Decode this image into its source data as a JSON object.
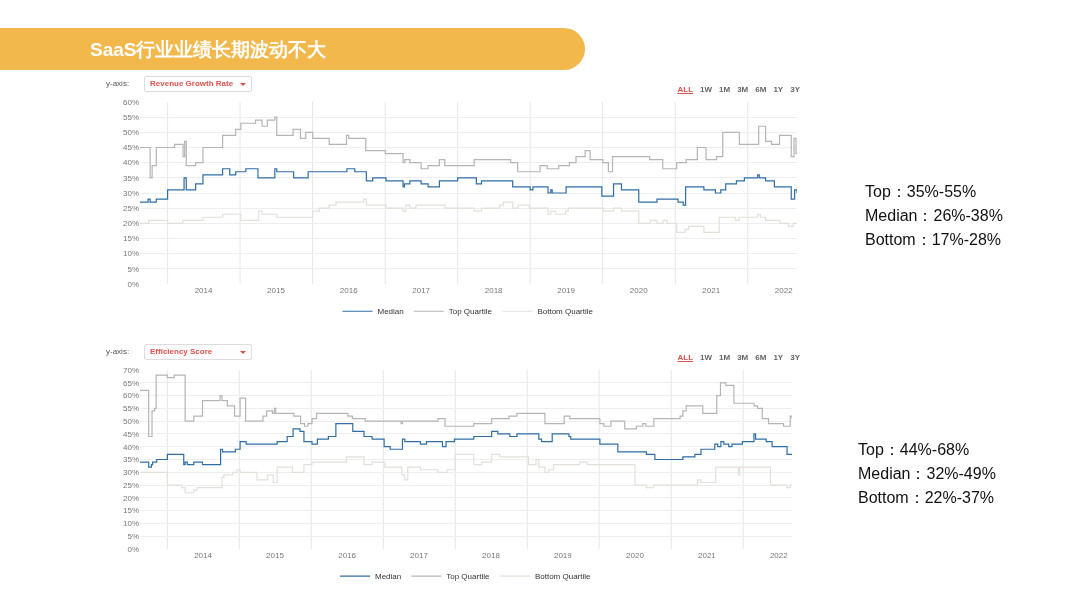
{
  "chart_data": [
    {
      "type": "step",
      "title": "SaaS行业业绩长期波动不大",
      "ylabel": "Revenue Growth Rate",
      "annotations": [
        "y-axis:",
        "ALL",
        "1W",
        "1M",
        "3M",
        "6M",
        "1Y",
        "3Y",
        "Top：35%-55%\nMedian：26%-38%\nBottom：17%-28%"
      ],
      "xlim": [
        "2013-08-15",
        "2022-09-06"
      ],
      "xticks": [
        {
          "value": "2014-01-01",
          "label": null
        },
        {
          "value": "2015-01-01",
          "label": null
        },
        {
          "value": "2016-01-01",
          "label": null
        },
        {
          "value": "2017-01-01",
          "label": null
        },
        {
          "value": "2018-01-01",
          "label": null
        },
        {
          "value": "2019-01-01",
          "label": null
        },
        {
          "value": "2020-01-01",
          "label": null
        },
        {
          "value": "2021-01-01",
          "label": null
        },
        {
          "value": "2022-01-01",
          "label": null
        },
        {
          "value": "2014-07-01",
          "label": "2014"
        },
        {
          "value": "2015-07-01",
          "label": "2015"
        },
        {
          "value": "2016-07-01",
          "label": "2016"
        },
        {
          "value": "2017-07-01",
          "label": "2017"
        },
        {
          "value": "2018-07-01",
          "label": "2018"
        },
        {
          "value": "2019-07-01",
          "label": "2019"
        },
        {
          "value": "2020-07-01",
          "label": "2020"
        },
        {
          "value": "2021-07-01",
          "label": "2021"
        },
        {
          "value": "2022-07-01",
          "label": "2022"
        }
      ],
      "ylim": [
        0,
        60
      ],
      "yticks": [
        {
          "value": 0,
          "label": "0%"
        },
        {
          "value": 5,
          "label": "5%"
        },
        {
          "value": 10,
          "label": "10%"
        },
        {
          "value": 15,
          "label": "15%"
        },
        {
          "value": 20,
          "label": "20%"
        },
        {
          "value": 25,
          "label": "25%"
        },
        {
          "value": 30,
          "label": "30%"
        },
        {
          "value": 35,
          "label": "35%"
        },
        {
          "value": 40,
          "label": "40%"
        },
        {
          "value": 45,
          "label": "45%"
        },
        {
          "value": 50,
          "label": "50%"
        },
        {
          "value": 55,
          "label": "55%"
        },
        {
          "value": 60,
          "label": "60%"
        }
      ],
      "grid": true,
      "legend": "bottom",
      "series": [
        {
          "name": "Median",
          "color": "#2f6ea5",
          "x": [
            "2013-08-15",
            "2013-09-25",
            "2013-10-05",
            "2013-11-05",
            "2014-01-01",
            "2014-03-25",
            "2014-04-05",
            "2014-05-22",
            "2014-06-28",
            "2014-10-05",
            "2014-11-10",
            "2014-12-10",
            "2015-01-30",
            "2015-04-01",
            "2015-06-25",
            "2015-07-05",
            "2015-09-28",
            "2015-12-10",
            "2016-06-22",
            "2016-08-01",
            "2016-09-28",
            "2016-10-30",
            "2017-01-05",
            "2017-04-01",
            "2017-04-08",
            "2017-05-05",
            "2017-07-01",
            "2017-08-05",
            "2017-10-01",
            "2018-01-01",
            "2018-04-05",
            "2018-05-01",
            "2018-10-05",
            "2019-01-01",
            "2019-01-15",
            "2019-04-01",
            "2019-04-15",
            "2019-04-22",
            "2019-07-01",
            "2019-12-28",
            "2020-02-25",
            "2020-04-05",
            "2020-07-01",
            "2020-10-01",
            "2021-01-15",
            "2021-02-10",
            "2021-02-22",
            "2021-05-25",
            "2021-07-22",
            "2021-08-18",
            "2021-09-12",
            "2021-11-05",
            "2021-12-15",
            "2022-02-20",
            "2022-02-28",
            "2022-04-01",
            "2022-05-15",
            "2022-08-08",
            "2022-08-25",
            "2022-09-06"
          ],
          "values": [
            27,
            28,
            27,
            28,
            31,
            35,
            31,
            33,
            36,
            38,
            36,
            37,
            38,
            35,
            38,
            37,
            35,
            37,
            38,
            37,
            34,
            35,
            34,
            32,
            33,
            34,
            33,
            32,
            34,
            35,
            33,
            34,
            32,
            31,
            32,
            30,
            31,
            30,
            32,
            29,
            33,
            31,
            27,
            28,
            27,
            26,
            32,
            31,
            30,
            31,
            33,
            34,
            35,
            36,
            35,
            34,
            32,
            28,
            31,
            30
          ]
        },
        {
          "name": "Top Quartile",
          "color": "#b5b5b5",
          "x": [
            "2013-08-15",
            "2013-10-05",
            "2013-10-15",
            "2013-11-05",
            "2014-02-05",
            "2014-03-20",
            "2014-03-28",
            "2014-04-05",
            "2014-05-22",
            "2014-06-28",
            "2014-10-05",
            "2014-12-10",
            "2015-01-05",
            "2015-03-20",
            "2015-04-22",
            "2015-05-18",
            "2015-06-25",
            "2015-07-05",
            "2015-09-25",
            "2015-11-01",
            "2015-11-28",
            "2016-01-02",
            "2016-03-25",
            "2016-06-20",
            "2016-07-01",
            "2016-09-25",
            "2017-01-02",
            "2017-04-01",
            "2017-04-10",
            "2017-05-05",
            "2017-07-01",
            "2017-08-05",
            "2017-10-01",
            "2017-10-28",
            "2018-03-25",
            "2018-09-25",
            "2018-10-30",
            "2019-02-20",
            "2019-03-28",
            "2019-05-25",
            "2019-07-18",
            "2019-08-20",
            "2019-10-05",
            "2019-10-30",
            "2020-01-02",
            "2020-01-30",
            "2020-02-20",
            "2020-08-25",
            "2020-10-30",
            "2021-01-08",
            "2021-02-25",
            "2021-04-22",
            "2021-06-05",
            "2021-07-28",
            "2021-08-28",
            "2021-11-20",
            "2022-02-25",
            "2022-04-01",
            "2022-05-01",
            "2022-06-10",
            "2022-08-08",
            "2022-08-22",
            "2022-09-01",
            "2022-09-06"
          ],
          "values": [
            45,
            35,
            39,
            45,
            46,
            42,
            47,
            39,
            40,
            45,
            49,
            51,
            53,
            54,
            52,
            54,
            55,
            49,
            51,
            48,
            50,
            48,
            46,
            49,
            48,
            44,
            43,
            40,
            41,
            40,
            38,
            39,
            41,
            39,
            41,
            40,
            37,
            39,
            38,
            39,
            40,
            42,
            44,
            41,
            40,
            37,
            42,
            41,
            38,
            40,
            41,
            45,
            41,
            42,
            50,
            46,
            52,
            47,
            46,
            49,
            42,
            48,
            43,
            43
          ]
        },
        {
          "name": "Bottom Quartile",
          "color": "#e3e0da",
          "x": [
            "2013-08-15",
            "2013-09-28",
            "2014-01-01",
            "2014-03-18",
            "2014-06-28",
            "2014-10-05",
            "2015-01-05",
            "2015-04-05",
            "2015-04-22",
            "2015-07-05",
            "2016-01-01",
            "2016-02-05",
            "2016-03-25",
            "2016-04-28",
            "2016-09-15",
            "2016-09-28",
            "2017-01-05",
            "2017-04-01",
            "2017-04-15",
            "2017-05-05",
            "2017-06-05",
            "2017-10-30",
            "2018-03-25",
            "2018-05-01",
            "2018-08-01",
            "2018-08-20",
            "2018-10-05",
            "2018-11-01",
            "2018-12-28",
            "2019-04-01",
            "2019-04-15",
            "2019-05-10",
            "2019-06-28",
            "2019-07-12",
            "2020-01-05",
            "2020-02-25",
            "2020-04-05",
            "2020-07-01",
            "2020-08-28",
            "2020-10-01",
            "2020-11-01",
            "2020-11-20",
            "2021-01-08",
            "2021-02-20",
            "2021-03-10",
            "2021-05-25",
            "2021-08-10",
            "2021-11-01",
            "2021-11-18",
            "2022-02-20",
            "2022-03-05",
            "2022-04-01",
            "2022-06-12",
            "2022-07-25",
            "2022-08-18",
            "2022-09-06"
          ],
          "values": [
            20,
            21,
            20,
            21,
            22,
            23,
            21,
            24,
            23,
            22,
            24,
            25,
            26,
            27,
            28,
            26,
            25,
            24,
            26,
            25,
            26,
            25,
            24,
            25,
            26,
            27,
            25,
            26,
            25,
            23,
            24,
            23,
            24,
            25,
            24,
            25,
            24,
            20,
            21,
            20,
            21,
            20,
            17,
            18,
            19,
            17,
            22,
            21,
            22,
            23,
            22,
            21,
            20,
            19,
            20,
            20
          ]
        }
      ]
    },
    {
      "type": "step",
      "ylabel": "Efficiency Score",
      "annotations": [
        "y-axis:",
        "ALL",
        "1W",
        "1M",
        "3M",
        "6M",
        "1Y",
        "3Y",
        "Top：44%-68%\nMedian：32%-49%\nBottom：22%-37%"
      ],
      "xlim": [
        "2013-08-15",
        "2022-09-06"
      ],
      "xticks": [
        {
          "value": "2014-01-01",
          "label": null
        },
        {
          "value": "2015-01-01",
          "label": null
        },
        {
          "value": "2016-01-01",
          "label": null
        },
        {
          "value": "2017-01-01",
          "label": null
        },
        {
          "value": "2018-01-01",
          "label": null
        },
        {
          "value": "2019-01-01",
          "label": null
        },
        {
          "value": "2020-01-01",
          "label": null
        },
        {
          "value": "2021-01-01",
          "label": null
        },
        {
          "value": "2022-01-01",
          "label": null
        },
        {
          "value": "2014-07-01",
          "label": "2014"
        },
        {
          "value": "2015-07-01",
          "label": "2015"
        },
        {
          "value": "2016-07-01",
          "label": "2016"
        },
        {
          "value": "2017-07-01",
          "label": "2017"
        },
        {
          "value": "2018-07-01",
          "label": "2018"
        },
        {
          "value": "2019-07-01",
          "label": "2019"
        },
        {
          "value": "2020-07-01",
          "label": "2020"
        },
        {
          "value": "2021-07-01",
          "label": "2021"
        },
        {
          "value": "2022-07-01",
          "label": "2022"
        }
      ],
      "ylim": [
        0,
        70
      ],
      "yticks": [
        {
          "value": 0,
          "label": "0%"
        },
        {
          "value": 5,
          "label": "5%"
        },
        {
          "value": 10,
          "label": "10%"
        },
        {
          "value": 15,
          "label": "15%"
        },
        {
          "value": 20,
          "label": "20%"
        },
        {
          "value": 25,
          "label": "25%"
        },
        {
          "value": 30,
          "label": "30%"
        },
        {
          "value": 35,
          "label": "35%"
        },
        {
          "value": 40,
          "label": "40%"
        },
        {
          "value": 45,
          "label": "45%"
        },
        {
          "value": 50,
          "label": "50%"
        },
        {
          "value": 55,
          "label": "55%"
        },
        {
          "value": 60,
          "label": "60%"
        },
        {
          "value": 65,
          "label": "65%"
        },
        {
          "value": 70,
          "label": "70%"
        }
      ],
      "grid": true,
      "legend": "bottom",
      "series": [
        {
          "name": "Median",
          "color": "#2f6ea5",
          "x": [
            "2013-08-15",
            "2013-09-28",
            "2013-10-12",
            "2013-10-18",
            "2013-11-08",
            "2014-01-01",
            "2014-03-25",
            "2014-04-01",
            "2014-04-12",
            "2014-05-15",
            "2014-06-28",
            "2014-09-28",
            "2014-10-08",
            "2014-12-12",
            "2015-01-05",
            "2015-02-05",
            "2015-07-12",
            "2015-09-01",
            "2015-10-01",
            "2015-11-05",
            "2015-11-25",
            "2016-01-05",
            "2016-02-01",
            "2016-03-28",
            "2016-05-05",
            "2016-07-30",
            "2016-09-25",
            "2016-11-05",
            "2017-01-05",
            "2017-02-05",
            "2017-04-08",
            "2017-04-20",
            "2017-07-08",
            "2017-08-08",
            "2017-10-28",
            "2017-11-15",
            "2017-12-28",
            "2018-04-05",
            "2018-07-05",
            "2018-08-05",
            "2018-10-05",
            "2018-11-10",
            "2019-03-01",
            "2019-03-15",
            "2019-05-08",
            "2019-08-01",
            "2019-08-10",
            "2020-01-05",
            "2020-04-05",
            "2020-08-28",
            "2020-10-10",
            "2021-03-01",
            "2021-05-01",
            "2021-06-01",
            "2021-08-10",
            "2021-08-25",
            "2021-09-10",
            "2021-09-25",
            "2021-10-20",
            "2021-11-05",
            "2021-12-28",
            "2022-02-25",
            "2022-03-05",
            "2022-04-28",
            "2022-05-28",
            "2022-08-12",
            "2022-09-06"
          ],
          "values": [
            34,
            32,
            33,
            34,
            35,
            37,
            33,
            34,
            33,
            34,
            33,
            39,
            38,
            39,
            42,
            41,
            42,
            44,
            47,
            46,
            42,
            41,
            43,
            44,
            49,
            46,
            44,
            43,
            40,
            39,
            43,
            42,
            41,
            42,
            40,
            42,
            43,
            44,
            46,
            45,
            44,
            45,
            43,
            42,
            45,
            44,
            43,
            41,
            38,
            37,
            35,
            36,
            37,
            39,
            41,
            40,
            42,
            41,
            40,
            41,
            42,
            45,
            43,
            42,
            40,
            37,
            37
          ]
        },
        {
          "name": "Top Quartile",
          "color": "#b5b5b5",
          "x": [
            "2013-08-15",
            "2013-09-28",
            "2013-10-15",
            "2013-10-28",
            "2013-11-05",
            "2014-01-01",
            "2014-02-05",
            "2014-04-01",
            "2014-05-15",
            "2014-06-28",
            "2014-09-25",
            "2014-10-05",
            "2014-11-01",
            "2014-12-08",
            "2015-01-05",
            "2015-02-02",
            "2015-05-01",
            "2015-05-20",
            "2015-06-18",
            "2015-06-28",
            "2015-07-05",
            "2015-10-05",
            "2015-11-08",
            "2015-11-28",
            "2015-12-15",
            "2016-01-05",
            "2016-01-28",
            "2016-07-05",
            "2016-07-28",
            "2016-10-01",
            "2017-04-01",
            "2017-04-08",
            "2017-10-05",
            "2017-11-10",
            "2018-04-05",
            "2018-07-05",
            "2018-10-01",
            "2018-11-10",
            "2019-04-01",
            "2019-07-08",
            "2019-08-05",
            "2020-01-05",
            "2020-01-25",
            "2020-03-01",
            "2020-05-10",
            "2020-07-08",
            "2020-08-10",
            "2020-08-25",
            "2020-10-05",
            "2021-02-15",
            "2021-03-01",
            "2021-03-18",
            "2021-06-10",
            "2021-08-20",
            "2021-09-08",
            "2021-10-05",
            "2021-11-15",
            "2022-02-25",
            "2022-03-15",
            "2022-04-08",
            "2022-05-10",
            "2022-07-25",
            "2022-08-28",
            "2022-09-06"
          ],
          "values": [
            62,
            44,
            54,
            55,
            68,
            67,
            68,
            50,
            52,
            58,
            60,
            58,
            56,
            52,
            59,
            50,
            52,
            54,
            53,
            55,
            53,
            52,
            49,
            48,
            49,
            51,
            53,
            52,
            51,
            50,
            49,
            50,
            51,
            48,
            49,
            51,
            52,
            53,
            49,
            52,
            51,
            49,
            48,
            50,
            47,
            48,
            49,
            48,
            51,
            52,
            54,
            56,
            53,
            60,
            65,
            64,
            57,
            56,
            55,
            51,
            49,
            48,
            52,
            51
          ]
        },
        {
          "name": "Bottom Quartile",
          "color": "#e3e0da",
          "x": [
            "2013-08-15",
            "2014-01-01",
            "2014-03-15",
            "2014-04-01",
            "2014-05-15",
            "2014-06-01",
            "2014-10-05",
            "2014-10-15",
            "2014-11-28",
            "2014-12-20",
            "2015-01-05",
            "2015-04-01",
            "2015-05-25",
            "2015-06-22",
            "2015-07-12",
            "2015-09-28",
            "2015-11-25",
            "2016-01-05",
            "2016-06-28",
            "2016-09-25",
            "2016-11-05",
            "2017-01-08",
            "2017-04-05",
            "2017-04-20",
            "2017-05-05",
            "2017-07-08",
            "2017-10-05",
            "2017-11-20",
            "2018-01-01",
            "2018-04-05",
            "2018-05-15",
            "2018-07-05",
            "2018-08-15",
            "2019-01-08",
            "2019-02-15",
            "2019-03-01",
            "2019-04-01",
            "2019-04-20",
            "2019-05-15",
            "2019-09-25",
            "2019-11-01",
            "2020-07-01",
            "2020-08-28",
            "2020-10-05",
            "2021-05-15",
            "2021-06-01",
            "2021-08-15",
            "2021-12-08",
            "2021-12-15",
            "2022-05-20",
            "2022-08-10",
            "2022-08-28",
            "2022-09-06"
          ],
          "values": [
            30,
            25,
            24,
            22,
            23,
            24,
            28,
            29,
            30,
            31,
            30,
            27,
            29,
            26,
            32,
            30,
            33,
            34,
            36,
            33,
            34,
            32,
            29,
            27,
            32,
            31,
            30,
            31,
            37,
            33,
            34,
            37,
            36,
            33,
            35,
            32,
            30,
            31,
            33,
            34,
            33,
            25,
            24,
            25,
            27,
            26,
            32,
            29,
            32,
            25,
            24,
            25,
            25
          ]
        }
      ]
    }
  ]
}
